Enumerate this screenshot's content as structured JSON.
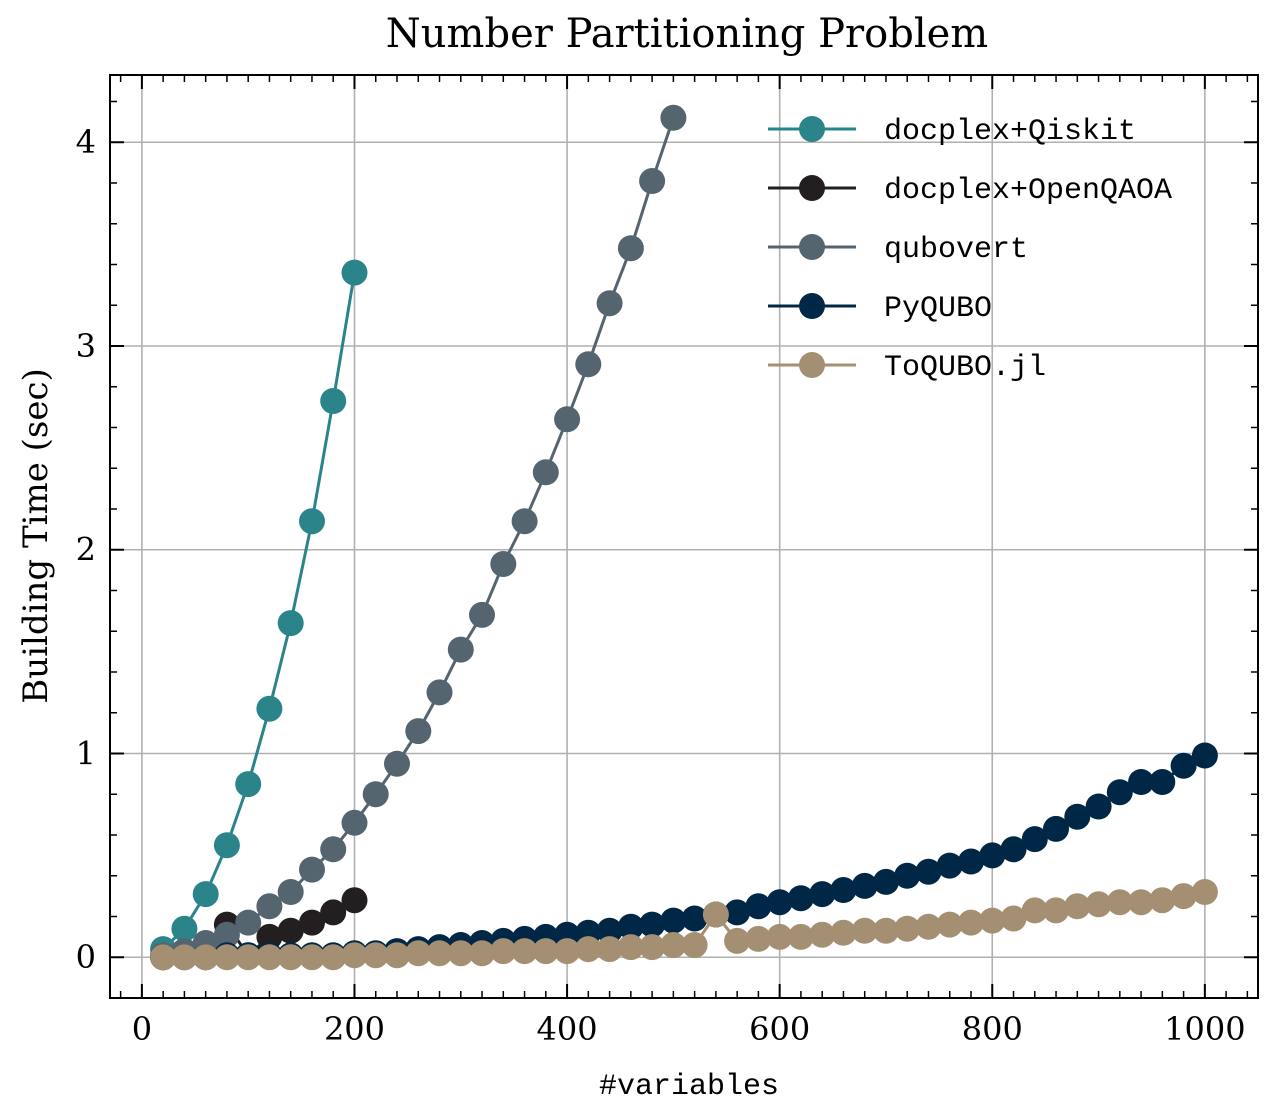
{
  "chart_data": {
    "type": "line",
    "title": "Number Partitioning Problem",
    "xlabel": "#variables",
    "ylabel": "Building Time (sec)",
    "xlim": [
      -30,
      1050
    ],
    "ylim": [
      -0.2,
      4.33
    ],
    "xticks": [
      0,
      200,
      400,
      600,
      800,
      1000
    ],
    "yticks": [
      0,
      1,
      2,
      3,
      4
    ],
    "grid": true,
    "legend_position": "top-right",
    "series": [
      {
        "name": "docplex+Qiskit",
        "color": "#2a848a",
        "x": [
          20,
          40,
          60,
          80,
          100,
          120,
          140,
          160,
          180,
          200
        ],
        "y": [
          0.04,
          0.14,
          0.31,
          0.55,
          0.85,
          1.22,
          1.64,
          2.14,
          2.73,
          3.36
        ]
      },
      {
        "name": "docplex+OpenQAOA",
        "color": "#231f20",
        "x": [
          20,
          40,
          60,
          80,
          100,
          120,
          140,
          160,
          180,
          200
        ],
        "y": [
          0.0,
          0.02,
          0.06,
          0.16,
          0.01,
          0.1,
          0.13,
          0.17,
          0.22,
          0.28
        ]
      },
      {
        "name": "qubovert",
        "color": "#55656f",
        "x": [
          20,
          40,
          60,
          80,
          100,
          120,
          140,
          160,
          180,
          200,
          220,
          240,
          260,
          280,
          300,
          320,
          340,
          360,
          380,
          400,
          420,
          440,
          460,
          480,
          500
        ],
        "y": [
          0.01,
          0.03,
          0.07,
          0.11,
          0.17,
          0.25,
          0.32,
          0.43,
          0.53,
          0.66,
          0.8,
          0.95,
          1.11,
          1.3,
          1.51,
          1.68,
          1.93,
          2.14,
          2.38,
          2.64,
          2.91,
          3.21,
          3.48,
          3.81,
          4.12
        ]
      },
      {
        "name": "PyQUBO",
        "color": "#002846",
        "x": [
          20,
          40,
          60,
          80,
          100,
          120,
          140,
          160,
          180,
          200,
          220,
          240,
          260,
          280,
          300,
          320,
          340,
          360,
          380,
          400,
          420,
          440,
          460,
          480,
          500,
          520,
          540,
          560,
          580,
          600,
          620,
          640,
          660,
          680,
          700,
          720,
          740,
          760,
          780,
          800,
          820,
          840,
          860,
          880,
          900,
          920,
          940,
          960,
          980,
          1000
        ],
        "y": [
          0.0,
          0.0,
          0.0,
          0.01,
          0.01,
          0.01,
          0.01,
          0.01,
          0.01,
          0.02,
          0.02,
          0.03,
          0.04,
          0.05,
          0.06,
          0.07,
          0.08,
          0.09,
          0.1,
          0.11,
          0.12,
          0.13,
          0.15,
          0.16,
          0.18,
          0.19,
          0.21,
          0.22,
          0.25,
          0.27,
          0.29,
          0.31,
          0.33,
          0.35,
          0.37,
          0.4,
          0.42,
          0.45,
          0.47,
          0.5,
          0.53,
          0.58,
          0.63,
          0.69,
          0.74,
          0.81,
          0.86,
          0.86,
          0.94,
          0.99
        ]
      },
      {
        "name": "ToQUBO.jl",
        "color": "#a48f72",
        "x": [
          20,
          40,
          60,
          80,
          100,
          120,
          140,
          160,
          180,
          200,
          220,
          240,
          260,
          280,
          300,
          320,
          340,
          360,
          380,
          400,
          420,
          440,
          460,
          480,
          500,
          520,
          540,
          560,
          580,
          600,
          620,
          640,
          660,
          680,
          700,
          720,
          740,
          760,
          780,
          800,
          820,
          840,
          860,
          880,
          900,
          920,
          940,
          960,
          980,
          1000
        ],
        "y": [
          0.0,
          0.0,
          0.0,
          0.0,
          0.0,
          0.0,
          0.0,
          0.0,
          0.0,
          0.01,
          0.01,
          0.01,
          0.02,
          0.02,
          0.02,
          0.02,
          0.03,
          0.03,
          0.03,
          0.03,
          0.04,
          0.04,
          0.05,
          0.05,
          0.06,
          0.06,
          0.21,
          0.08,
          0.09,
          0.1,
          0.1,
          0.11,
          0.12,
          0.13,
          0.13,
          0.14,
          0.15,
          0.16,
          0.17,
          0.18,
          0.19,
          0.23,
          0.23,
          0.25,
          0.26,
          0.27,
          0.27,
          0.28,
          0.3,
          0.32
        ]
      }
    ]
  }
}
